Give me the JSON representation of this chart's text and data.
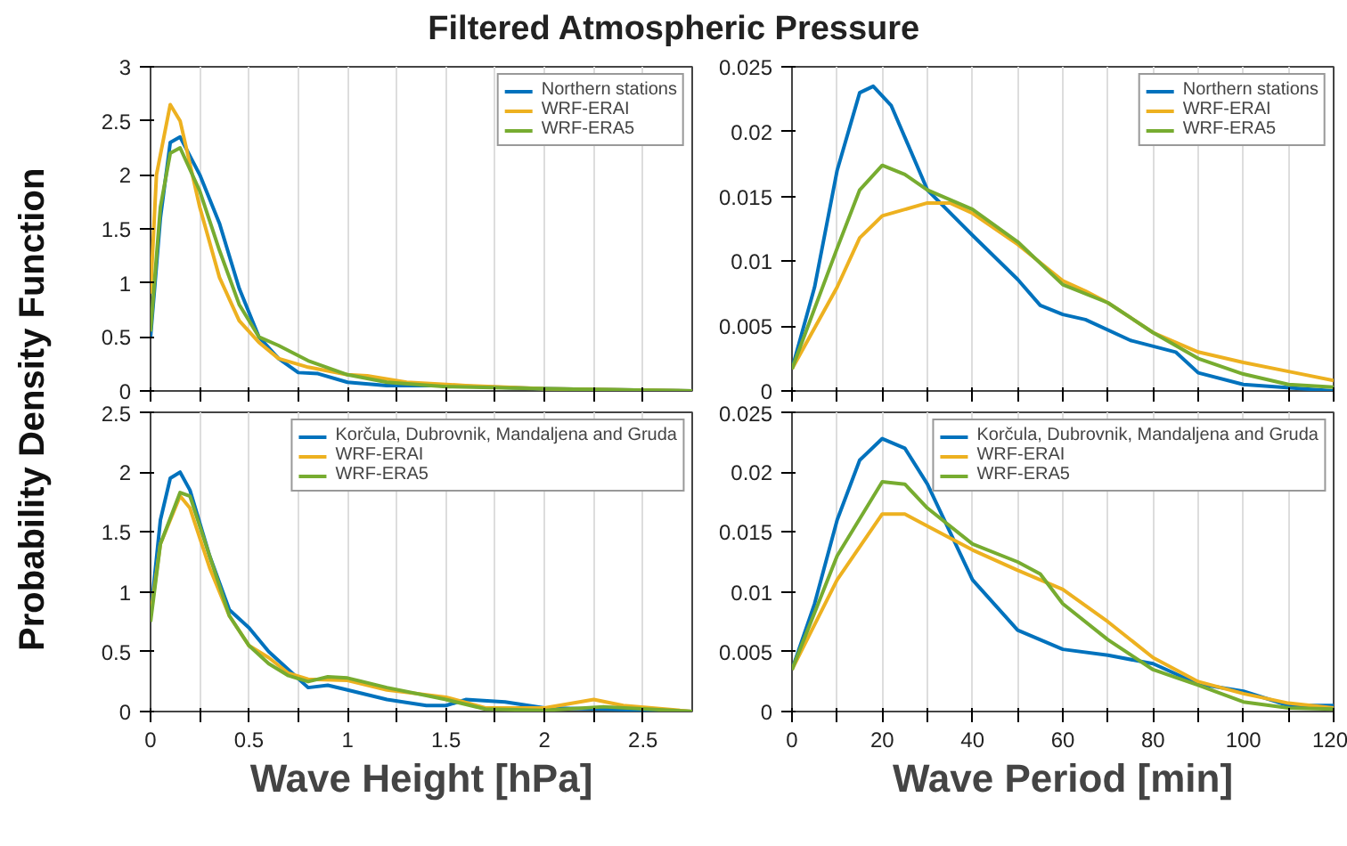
{
  "chart_data": [
    {
      "type": "line",
      "title": "Filtered Atmospheric Pressure",
      "ylabel": "Probability Density Function",
      "legend": "top right",
      "grid": "x",
      "tick_labels": "y",
      "line_style": "solid",
      "xlim": [
        0,
        2.75
      ],
      "xticks": [
        0,
        {
          "value": 0.25,
          "label": null
        },
        0.5,
        {
          "value": 0.75,
          "label": null
        },
        1,
        {
          "value": 1.25,
          "label": null
        },
        1.5,
        {
          "value": 1.75,
          "label": null
        },
        2,
        {
          "value": 2.25,
          "label": null
        },
        2.5
      ],
      "ylim": [
        0,
        3
      ],
      "yticks": [
        0,
        0.5,
        1,
        1.5,
        2,
        2.5,
        3
      ],
      "series": [
        {
          "name": "Northern stations",
          "color": "#0072bd",
          "x": [
            0,
            0.05,
            0.1,
            0.15,
            0.25,
            0.35,
            0.45,
            0.55,
            0.65,
            0.75,
            0.85,
            1.0,
            1.2,
            1.5,
            2.0,
            2.75
          ],
          "values": [
            0.5,
            1.6,
            2.3,
            2.35,
            2.0,
            1.55,
            0.95,
            0.5,
            0.3,
            0.17,
            0.16,
            0.08,
            0.05,
            0.05,
            0.02,
            0
          ]
        },
        {
          "name": "WRF-ERAI",
          "color": "#edb120",
          "x": [
            0,
            0.03,
            0.1,
            0.15,
            0.25,
            0.35,
            0.45,
            0.55,
            0.65,
            0.8,
            1.0,
            1.1,
            1.3,
            1.6,
            2.0,
            2.75
          ],
          "values": [
            0.9,
            2.0,
            2.65,
            2.5,
            1.7,
            1.05,
            0.65,
            0.45,
            0.3,
            0.22,
            0.15,
            0.14,
            0.08,
            0.05,
            0.02,
            0
          ]
        },
        {
          "name": "WRF-ERA5",
          "color": "#77ac30",
          "x": [
            0,
            0.05,
            0.1,
            0.15,
            0.25,
            0.35,
            0.45,
            0.55,
            0.65,
            0.8,
            1.0,
            1.2,
            1.5,
            2.0,
            2.75
          ],
          "values": [
            0.55,
            1.7,
            2.2,
            2.25,
            1.85,
            1.3,
            0.8,
            0.5,
            0.42,
            0.28,
            0.15,
            0.08,
            0.04,
            0.02,
            0
          ]
        }
      ]
    },
    {
      "type": "line",
      "legend": "top right",
      "grid": "x",
      "tick_labels": "y",
      "line_style": "solid",
      "xlim": [
        0,
        120
      ],
      "xticks": [
        0,
        {
          "value": 10,
          "label": null
        },
        20,
        {
          "value": 30,
          "label": null
        },
        40,
        {
          "value": 50,
          "label": null
        },
        60,
        {
          "value": 70,
          "label": null
        },
        80,
        {
          "value": 90,
          "label": null
        },
        100,
        {
          "value": 110,
          "label": null
        },
        120
      ],
      "ylim": [
        0,
        0.025
      ],
      "yticks": [
        0,
        0.005,
        0.01,
        0.015,
        0.02,
        0.025
      ],
      "series": [
        {
          "name": "Northern stations",
          "color": "#0072bd",
          "x": [
            0,
            5,
            10,
            15,
            18,
            22,
            30,
            40,
            50,
            55,
            60,
            65,
            75,
            85,
            90,
            100,
            120
          ],
          "values": [
            0.0017,
            0.008,
            0.017,
            0.023,
            0.0235,
            0.022,
            0.0155,
            0.012,
            0.0086,
            0.0066,
            0.0059,
            0.0055,
            0.0039,
            0.003,
            0.0014,
            0.0005,
            0
          ]
        },
        {
          "name": "WRF-ERAI",
          "color": "#edb120",
          "x": [
            0,
            10,
            15,
            20,
            30,
            35,
            40,
            50,
            60,
            65,
            70,
            80,
            90,
            100,
            110,
            120
          ],
          "values": [
            0.0017,
            0.008,
            0.0118,
            0.0135,
            0.0145,
            0.0145,
            0.0137,
            0.0113,
            0.0085,
            0.0077,
            0.0068,
            0.0045,
            0.003,
            0.0022,
            0.0015,
            0.0008
          ]
        },
        {
          "name": "WRF-ERA5",
          "color": "#77ac30",
          "x": [
            0,
            10,
            15,
            20,
            25,
            30,
            40,
            50,
            60,
            70,
            80,
            90,
            100,
            110,
            120
          ],
          "values": [
            0.0017,
            0.011,
            0.0155,
            0.0174,
            0.0167,
            0.0155,
            0.014,
            0.0115,
            0.0082,
            0.0068,
            0.0045,
            0.0025,
            0.0013,
            0.0005,
            0.0003
          ]
        }
      ]
    },
    {
      "type": "line",
      "xlabel": "Wave Height [hPa]",
      "legend": "top right",
      "grid": "x",
      "line_style": "solid",
      "xlim": [
        0,
        2.75
      ],
      "xticks": [
        0,
        {
          "value": 0.25,
          "label": null
        },
        0.5,
        {
          "value": 0.75,
          "label": null
        },
        1,
        {
          "value": 1.25,
          "label": null
        },
        1.5,
        {
          "value": 1.75,
          "label": null
        },
        2,
        {
          "value": 2.25,
          "label": null
        },
        2.5
      ],
      "ylim": [
        0,
        2.5
      ],
      "yticks": [
        0,
        0.5,
        1,
        1.5,
        2,
        2.5
      ],
      "series": [
        {
          "name": "Korčula, Dubrovnik, Mandaljena and Gruda",
          "color": "#0072bd",
          "x": [
            0,
            0.05,
            0.1,
            0.15,
            0.2,
            0.3,
            0.4,
            0.5,
            0.6,
            0.7,
            0.8,
            0.9,
            1.0,
            1.2,
            1.4,
            1.5,
            1.6,
            1.8,
            2.0,
            2.3,
            2.75
          ],
          "values": [
            0.8,
            1.6,
            1.95,
            2.0,
            1.85,
            1.3,
            0.85,
            0.7,
            0.5,
            0.35,
            0.2,
            0.22,
            0.18,
            0.1,
            0.05,
            0.05,
            0.1,
            0.08,
            0.03,
            0.02,
            0
          ]
        },
        {
          "name": "WRF-ERAI",
          "color": "#edb120",
          "x": [
            0,
            0.05,
            0.15,
            0.2,
            0.3,
            0.4,
            0.5,
            0.6,
            0.7,
            0.8,
            1.0,
            1.2,
            1.5,
            1.7,
            2.0,
            2.25,
            2.4,
            2.75
          ],
          "values": [
            0.8,
            1.4,
            1.8,
            1.7,
            1.2,
            0.8,
            0.55,
            0.45,
            0.32,
            0.27,
            0.26,
            0.18,
            0.12,
            0.03,
            0.03,
            0.1,
            0.05,
            0
          ]
        },
        {
          "name": "WRF-ERA5",
          "color": "#77ac30",
          "x": [
            0,
            0.05,
            0.15,
            0.2,
            0.3,
            0.4,
            0.5,
            0.6,
            0.7,
            0.8,
            0.9,
            1.0,
            1.2,
            1.5,
            1.7,
            2.0,
            2.3,
            2.75
          ],
          "values": [
            0.75,
            1.4,
            1.83,
            1.8,
            1.3,
            0.8,
            0.55,
            0.4,
            0.3,
            0.25,
            0.29,
            0.28,
            0.2,
            0.1,
            0.02,
            0.01,
            0.04,
            0
          ]
        }
      ]
    },
    {
      "type": "line",
      "xlabel": "Wave Period [min]",
      "legend": "top right",
      "grid": "x",
      "line_style": "solid",
      "xlim": [
        0,
        120
      ],
      "xticks": [
        0,
        {
          "value": 10,
          "label": null
        },
        20,
        {
          "value": 30,
          "label": null
        },
        40,
        {
          "value": 50,
          "label": null
        },
        60,
        {
          "value": 70,
          "label": null
        },
        80,
        {
          "value": 90,
          "label": null
        },
        100,
        {
          "value": 110,
          "label": null
        },
        120
      ],
      "ylim": [
        0,
        0.025
      ],
      "yticks": [
        0,
        0.005,
        0.01,
        0.015,
        0.02,
        0.025
      ],
      "series": [
        {
          "name": "Korčula, Dubrovnik, Mandaljena and Gruda",
          "color": "#0072bd",
          "x": [
            0,
            5,
            10,
            15,
            20,
            25,
            30,
            35,
            40,
            50,
            60,
            70,
            80,
            90,
            100,
            110,
            120
          ],
          "values": [
            0.0035,
            0.009,
            0.016,
            0.021,
            0.0228,
            0.022,
            0.019,
            0.015,
            0.011,
            0.0068,
            0.0052,
            0.0047,
            0.004,
            0.0023,
            0.0017,
            0.0005,
            0.0005
          ]
        },
        {
          "name": "WRF-ERAI",
          "color": "#edb120",
          "x": [
            0,
            10,
            20,
            25,
            30,
            40,
            50,
            60,
            70,
            80,
            90,
            100,
            110,
            120
          ],
          "values": [
            0.0035,
            0.011,
            0.0165,
            0.0165,
            0.0155,
            0.0135,
            0.0118,
            0.0102,
            0.0075,
            0.0045,
            0.0025,
            0.0015,
            0.0007,
            0.0003
          ]
        },
        {
          "name": "WRF-ERA5",
          "color": "#77ac30",
          "x": [
            0,
            10,
            20,
            25,
            30,
            40,
            50,
            55,
            60,
            70,
            80,
            90,
            100,
            110,
            120
          ],
          "values": [
            0.0035,
            0.013,
            0.0192,
            0.019,
            0.017,
            0.014,
            0.0125,
            0.0115,
            0.009,
            0.006,
            0.0035,
            0.0022,
            0.0008,
            0.0003,
            0.0002
          ]
        }
      ]
    }
  ]
}
